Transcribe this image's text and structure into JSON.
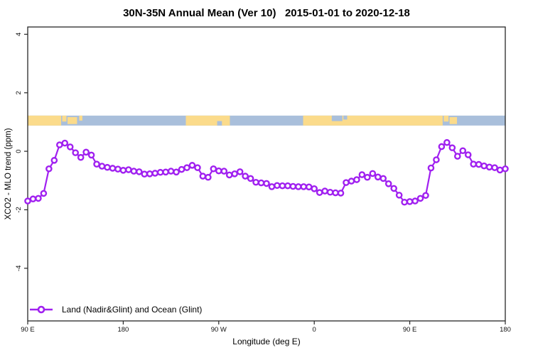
{
  "chart_data": {
    "type": "line",
    "title": "30N-35N Annual Mean (Ver 10)   2015-01-01 to 2020-12-18",
    "xlabel": "Longitude (deg E)",
    "ylabel": "XCO2 - MLO trend (ppm)",
    "xlim": [
      90,
      540
    ],
    "ylim": [
      -5.8,
      4.25
    ],
    "grid": false,
    "x_ticks": [
      {
        "v": 90,
        "label": "90 E"
      },
      {
        "v": 180,
        "label": "180"
      },
      {
        "v": 270,
        "label": "90 W"
      },
      {
        "v": 360,
        "label": "0"
      },
      {
        "v": 450,
        "label": "90 E"
      },
      {
        "v": 540,
        "label": "180"
      }
    ],
    "y_ticks": [
      {
        "v": -4,
        "label": "-4"
      },
      {
        "v": -2,
        "label": "-2"
      },
      {
        "v": 0,
        "label": "0"
      },
      {
        "v": 2,
        "label": "2"
      },
      {
        "v": 4,
        "label": "4"
      }
    ],
    "series": [
      {
        "name": "Land (Nadir&Glint) and Ocean (Glint)",
        "color": "#A020F0",
        "marker": "open-circle",
        "x": [
          90,
          95,
          100,
          105,
          110,
          115,
          120,
          125,
          130,
          135,
          140,
          145,
          150,
          155,
          160,
          165,
          170,
          175,
          180,
          185,
          190,
          195,
          200,
          205,
          210,
          215,
          220,
          225,
          230,
          235,
          240,
          245,
          250,
          255,
          260,
          265,
          270,
          275,
          280,
          285,
          290,
          295,
          300,
          305,
          310,
          315,
          320,
          325,
          330,
          335,
          340,
          345,
          350,
          355,
          360,
          365,
          370,
          375,
          380,
          385,
          390,
          395,
          400,
          405,
          410,
          415,
          420,
          425,
          430,
          435,
          440,
          445,
          450,
          455,
          460,
          465,
          470,
          475,
          480,
          485,
          490,
          495,
          500,
          505,
          510,
          515,
          520,
          525,
          530,
          535,
          540
        ],
        "values": [
          -1.7,
          -1.63,
          -1.61,
          -1.44,
          -0.6,
          -0.31,
          0.22,
          0.28,
          0.15,
          -0.05,
          -0.21,
          -0.03,
          -0.13,
          -0.44,
          -0.51,
          -0.55,
          -0.58,
          -0.61,
          -0.65,
          -0.63,
          -0.68,
          -0.7,
          -0.78,
          -0.77,
          -0.75,
          -0.72,
          -0.71,
          -0.68,
          -0.71,
          -0.62,
          -0.56,
          -0.48,
          -0.56,
          -0.85,
          -0.89,
          -0.6,
          -0.67,
          -0.68,
          -0.81,
          -0.77,
          -0.7,
          -0.85,
          -0.93,
          -1.06,
          -1.08,
          -1.1,
          -1.21,
          -1.17,
          -1.18,
          -1.18,
          -1.2,
          -1.21,
          -1.21,
          -1.22,
          -1.28,
          -1.41,
          -1.36,
          -1.4,
          -1.42,
          -1.43,
          -1.07,
          -1.02,
          -0.97,
          -0.8,
          -0.89,
          -0.76,
          -0.88,
          -0.93,
          -1.11,
          -1.27,
          -1.5,
          -1.74,
          -1.72,
          -1.7,
          -1.61,
          -1.51,
          -0.57,
          -0.29,
          0.16,
          0.3,
          0.12,
          -0.17,
          0.02,
          -0.12,
          -0.44,
          -0.45,
          -0.5,
          -0.54,
          -0.56,
          -0.64,
          -0.6
        ]
      }
    ],
    "legend": {
      "position": "bottom-left"
    },
    "map_strip": {
      "description": "land-ocean strip across 30N-35N",
      "ocean_color": "#A9BFDB",
      "land_color": "#FBDB8B",
      "y_range": [
        0.88,
        1.22
      ],
      "land_segments": [
        {
          "from": 90,
          "to": 121.5,
          "h": 1,
          "anchor": "top"
        },
        {
          "from": 122.5,
          "to": 126.5,
          "h": 0.6,
          "anchor": "top"
        },
        {
          "from": 127.5,
          "to": 136.5,
          "h": 0.7,
          "anchor": "mid"
        },
        {
          "from": 138.5,
          "to": 141.5,
          "h": 0.5,
          "anchor": "top"
        },
        {
          "from": 239,
          "to": 280.5,
          "h": 1,
          "anchor": "top"
        },
        {
          "from": 349.5,
          "to": 481,
          "h": 1,
          "anchor": "top"
        },
        {
          "from": 482,
          "to": 486.5,
          "h": 0.6,
          "anchor": "top"
        },
        {
          "from": 487.5,
          "to": 494.5,
          "h": 0.7,
          "anchor": "mid"
        }
      ],
      "ocean_overlays": [
        {
          "from": 268.5,
          "to": 273,
          "h": 0.45,
          "anchor": "bottom"
        },
        {
          "from": 376.5,
          "to": 386.5,
          "h": 0.55,
          "anchor": "top"
        },
        {
          "from": 387.5,
          "to": 391,
          "h": 0.4,
          "anchor": "top"
        }
      ]
    }
  }
}
